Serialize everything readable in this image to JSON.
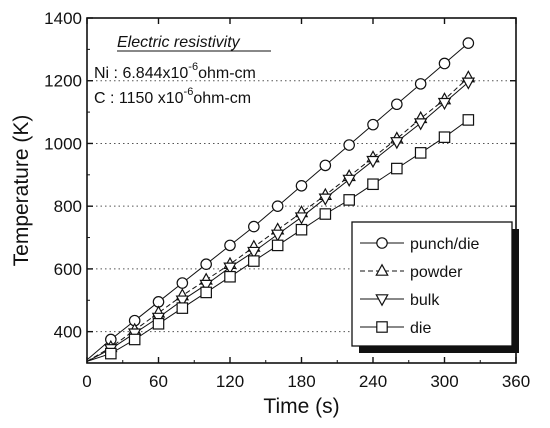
{
  "chart_data": {
    "type": "line",
    "title": "",
    "xlabel": "Time (s)",
    "ylabel": "Temperature (K)",
    "xlim": [
      0,
      360
    ],
    "ylim": [
      300,
      1400
    ],
    "xticks": [
      0,
      60,
      120,
      180,
      240,
      300,
      360
    ],
    "yticks": [
      400,
      600,
      800,
      1000,
      1200,
      1400
    ],
    "grid": "horizontal dotted",
    "legend_position": "bottom-right",
    "annotation": {
      "title": "Electric resistivity",
      "line1_prefix": "Ni : 6.844x10",
      "line1_exp": "-6",
      "line1_suffix": "ohm-cm",
      "line2_prefix": "C  : 1150 x10",
      "line2_exp": "-6",
      "line2_suffix": "ohm-cm"
    },
    "series": [
      {
        "name": "punch/die",
        "marker": "circle",
        "line": "solid",
        "x": [
          0,
          20,
          40,
          60,
          80,
          100,
          120,
          140,
          160,
          180,
          200,
          220,
          240,
          260,
          280,
          300,
          320
        ],
        "y": [
          310,
          375,
          435,
          495,
          555,
          615,
          675,
          735,
          800,
          865,
          930,
          995,
          1060,
          1125,
          1190,
          1255,
          1320
        ]
      },
      {
        "name": "powder",
        "marker": "triangle-up",
        "line": "dashed",
        "x": [
          0,
          20,
          40,
          60,
          80,
          100,
          120,
          140,
          160,
          180,
          200,
          220,
          240,
          260,
          280,
          300,
          320
        ],
        "y": [
          305,
          350,
          405,
          460,
          515,
          565,
          615,
          670,
          725,
          780,
          835,
          895,
          955,
          1015,
          1080,
          1140,
          1210
        ]
      },
      {
        "name": "bulk",
        "marker": "triangle-down",
        "line": "solid",
        "x": [
          0,
          20,
          40,
          60,
          80,
          100,
          120,
          140,
          160,
          180,
          200,
          220,
          240,
          260,
          280,
          300,
          320
        ],
        "y": [
          305,
          345,
          395,
          445,
          500,
          550,
          605,
          655,
          710,
          765,
          825,
          885,
          945,
          1005,
          1065,
          1130,
          1195
        ]
      },
      {
        "name": "die",
        "marker": "square",
        "line": "solid",
        "x": [
          0,
          20,
          40,
          60,
          80,
          100,
          120,
          140,
          160,
          180,
          200,
          220,
          240,
          260,
          280,
          300,
          320
        ],
        "y": [
          305,
          330,
          375,
          425,
          475,
          525,
          575,
          625,
          675,
          725,
          775,
          820,
          870,
          920,
          970,
          1020,
          1075
        ]
      }
    ]
  }
}
